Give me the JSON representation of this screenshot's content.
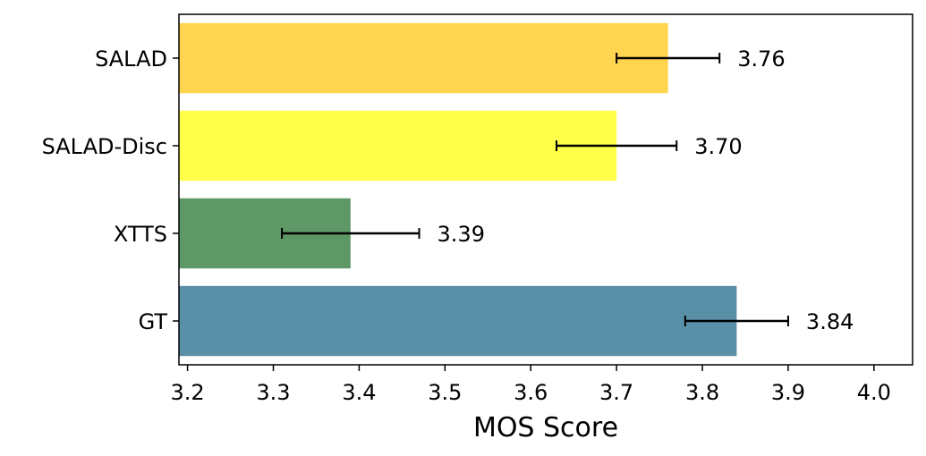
{
  "chart_data": {
    "type": "bar",
    "orientation": "horizontal",
    "categories": [
      "GT",
      "XTTS",
      "SALAD-Disc",
      "SALAD"
    ],
    "values": [
      3.84,
      3.39,
      3.7,
      3.76
    ],
    "error_low": [
      3.78,
      3.31,
      3.63,
      3.7
    ],
    "error_high": [
      3.9,
      3.47,
      3.77,
      3.82
    ],
    "data_labels": [
      "3.84",
      "3.39",
      "3.70",
      "3.76"
    ],
    "colors": [
      "#5a8fa8",
      "#5e9866",
      "#ffff4a",
      "#ffd44f"
    ],
    "title": "",
    "xlabel": "MOS Score",
    "ylabel": "",
    "xlim": [
      3.19,
      4.045
    ],
    "xticks": [
      3.2,
      3.3,
      3.4,
      3.5,
      3.6,
      3.7,
      3.8,
      3.9,
      4.0
    ],
    "xtick_labels": [
      "3.2",
      "3.3",
      "3.4",
      "3.5",
      "3.6",
      "3.7",
      "3.8",
      "3.9",
      "4.0"
    ],
    "grid": false,
    "legend": false
  }
}
